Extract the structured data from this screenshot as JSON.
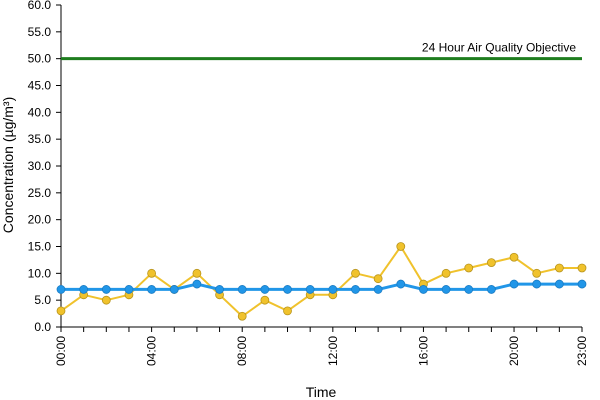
{
  "chart_data": {
    "type": "line",
    "title": "",
    "xlabel": "Time",
    "ylabel": "Concentration (µg/m³)",
    "ylim": [
      0,
      60
    ],
    "yticks": [
      "0.0",
      "5.0",
      "10.0",
      "15.0",
      "20.0",
      "25.0",
      "30.0",
      "35.0",
      "40.0",
      "45.0",
      "50.0",
      "55.0",
      "60.0"
    ],
    "x": [
      "00:00",
      "01:00",
      "02:00",
      "03:00",
      "04:00",
      "05:00",
      "06:00",
      "07:00",
      "08:00",
      "09:00",
      "10:00",
      "11:00",
      "12:00",
      "13:00",
      "14:00",
      "15:00",
      "16:00",
      "17:00",
      "18:00",
      "19:00",
      "20:00",
      "21:00",
      "22:00",
      "23:00"
    ],
    "xtick_labels": [
      "00:00",
      "04:00",
      "08:00",
      "12:00",
      "16:00",
      "20:00",
      "23:00"
    ],
    "grid": false,
    "series": [
      {
        "color": "#f0c22c",
        "values": [
          3,
          6,
          5,
          6,
          10,
          7,
          10,
          6,
          2,
          5,
          3,
          6,
          6,
          10,
          9,
          15,
          8,
          10,
          11,
          12,
          13,
          10,
          11,
          11
        ]
      },
      {
        "color": "#2196e8",
        "values": [
          7,
          7,
          7,
          7,
          7,
          7,
          8,
          7,
          7,
          7,
          7,
          7,
          7,
          7,
          7,
          8,
          7,
          7,
          7,
          7,
          8,
          8,
          8,
          8
        ]
      }
    ],
    "reference_line": {
      "value": 50,
      "label": "24 Hour Air Quality Objective",
      "color": "#1e7d1e"
    }
  }
}
